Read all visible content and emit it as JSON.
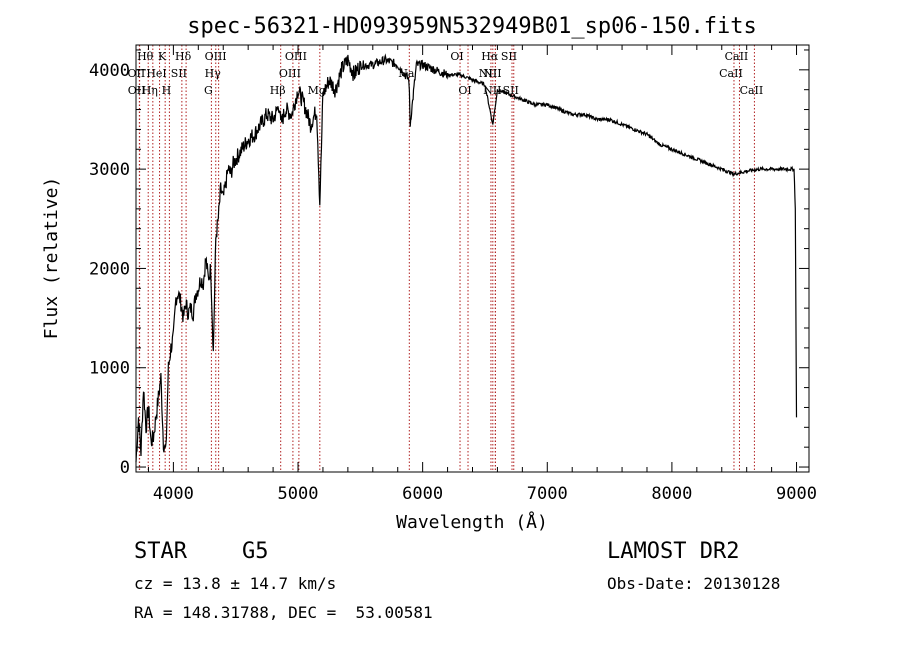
{
  "chart_data": {
    "type": "line",
    "title": "spec-56321-HD093959N532949B01_sp06-150.fits",
    "xlabel": "Wavelength (Å)",
    "ylabel": "Flux (relative)",
    "xlim": [
      3700,
      9100
    ],
    "ylim": [
      -50,
      4250
    ],
    "xticks": [
      4000,
      5000,
      6000,
      7000,
      8000,
      9000
    ],
    "yticks": [
      0,
      1000,
      2000,
      3000,
      4000
    ],
    "grid": false,
    "series": [
      {
        "name": "flux",
        "x": [
          3700,
          3720,
          3740,
          3760,
          3780,
          3800,
          3820,
          3840,
          3860,
          3880,
          3900,
          3920,
          3940,
          3960,
          3980,
          4000,
          4020,
          4040,
          4060,
          4080,
          4100,
          4120,
          4140,
          4160,
          4180,
          4200,
          4220,
          4240,
          4260,
          4280,
          4300,
          4320,
          4340,
          4360,
          4380,
          4400,
          4420,
          4440,
          4460,
          4480,
          4500,
          4550,
          4600,
          4650,
          4700,
          4750,
          4800,
          4850,
          4861,
          4900,
          4950,
          5000,
          5050,
          5100,
          5150,
          5175,
          5200,
          5250,
          5300,
          5350,
          5400,
          5450,
          5500,
          5600,
          5700,
          5800,
          5890,
          5900,
          5950,
          6000,
          6100,
          6200,
          6300,
          6400,
          6500,
          6563,
          6600,
          6700,
          6800,
          6900,
          7000,
          7100,
          7200,
          7300,
          7400,
          7500,
          7600,
          7700,
          7800,
          7900,
          8000,
          8100,
          8200,
          8300,
          8400,
          8500,
          8600,
          8700,
          8800,
          8900,
          8980,
          8990,
          9000
        ],
        "values": [
          50,
          500,
          150,
          800,
          400,
          600,
          250,
          300,
          500,
          700,
          900,
          250,
          150,
          1000,
          1200,
          1300,
          1700,
          1750,
          1650,
          1500,
          1650,
          1550,
          1600,
          1550,
          1750,
          1800,
          1900,
          1850,
          2100,
          1900,
          2000,
          1150,
          2300,
          2500,
          2800,
          2700,
          2850,
          3000,
          2950,
          3050,
          3100,
          3200,
          3300,
          3350,
          3450,
          3550,
          3500,
          3650,
          3450,
          3600,
          3550,
          3800,
          3650,
          3450,
          3600,
          2650,
          3750,
          3900,
          3800,
          4000,
          4100,
          3950,
          4050,
          4050,
          4100,
          4050,
          3900,
          3450,
          4050,
          4050,
          4000,
          3950,
          3950,
          3900,
          3850,
          3450,
          3800,
          3750,
          3700,
          3650,
          3650,
          3600,
          3550,
          3550,
          3500,
          3500,
          3450,
          3400,
          3350,
          3250,
          3200,
          3150,
          3100,
          3050,
          3000,
          2950,
          2980,
          3000,
          3000,
          3000,
          3000,
          2600,
          500
        ]
      }
    ],
    "spectral_lines": [
      {
        "label": "Hθ",
        "wavelength": 3798,
        "row": 0
      },
      {
        "label": "OII",
        "wavelength": 3727,
        "row": 1
      },
      {
        "label": "OII",
        "wavelength": 3729,
        "row": 2
      },
      {
        "label": "Hη",
        "wavelength": 3835,
        "row": 2
      },
      {
        "label": "HeI",
        "wavelength": 3889,
        "row": 1
      },
      {
        "label": "K",
        "wavelength": 3934,
        "row": 0
      },
      {
        "label": "H",
        "wavelength": 3968,
        "row": 2
      },
      {
        "label": "SII",
        "wavelength": 4068,
        "row": 1
      },
      {
        "label": "Hδ",
        "wavelength": 4102,
        "row": 0
      },
      {
        "label": "OIII",
        "wavelength": 4363,
        "row": 0
      },
      {
        "label": "Hγ",
        "wavelength": 4340,
        "row": 1
      },
      {
        "label": "G",
        "wavelength": 4305,
        "row": 2
      },
      {
        "label": "Hβ",
        "wavelength": 4861,
        "row": 2
      },
      {
        "label": "OIII",
        "wavelength": 4959,
        "row": 1
      },
      {
        "label": "OIII",
        "wavelength": 5007,
        "row": 0
      },
      {
        "label": "Mg",
        "wavelength": 5175,
        "row": 2
      },
      {
        "label": "Na",
        "wavelength": 5893,
        "row": 1
      },
      {
        "label": "OI",
        "wavelength": 6300,
        "row": 0
      },
      {
        "label": "OI",
        "wavelength": 6364,
        "row": 2
      },
      {
        "label": "Hα",
        "wavelength": 6563,
        "row": 0
      },
      {
        "label": "NII",
        "wavelength": 6548,
        "row": 1
      },
      {
        "label": "NII",
        "wavelength": 6583,
        "row": 2
      },
      {
        "label": "SII",
        "wavelength": 6717,
        "row": 0
      },
      {
        "label": "NII",
        "wavelength": 6584,
        "row": 1
      },
      {
        "label": "SII",
        "wavelength": 6731,
        "row": 2
      },
      {
        "label": "CaII",
        "wavelength": 8542,
        "row": 0
      },
      {
        "label": "CaII",
        "wavelength": 8498,
        "row": 1
      },
      {
        "label": "CaII",
        "wavelength": 8662,
        "row": 2
      }
    ],
    "line_color": "#b02020"
  },
  "info": {
    "class": "STAR",
    "subclass": "G5",
    "cz": "cz = 13.8 ± 14.7 km/s",
    "coords": "RA = 148.31788, DEC =  53.00581",
    "survey": "LAMOST DR2",
    "obs_date": "Obs-Date: 20130128"
  }
}
